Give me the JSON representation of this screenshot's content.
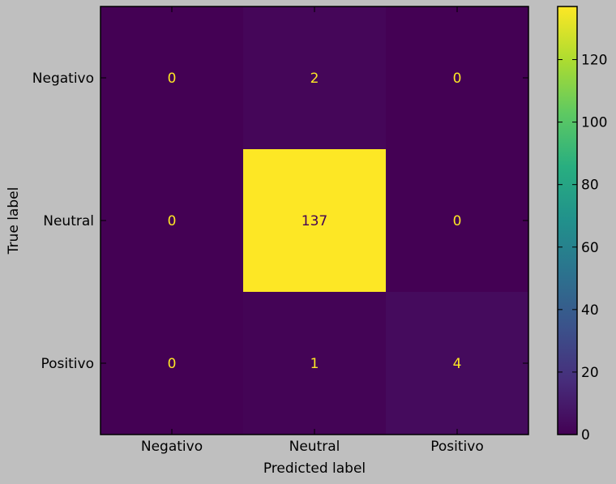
{
  "chart_data": {
    "type": "heatmap",
    "title": "",
    "xlabel": "Predicted label",
    "ylabel": "True label",
    "x_categories": [
      "Negativo",
      "Neutral",
      "Positivo"
    ],
    "y_categories": [
      "Negativo",
      "Neutral",
      "Positivo"
    ],
    "matrix": [
      [
        0,
        2,
        0
      ],
      [
        0,
        137,
        0
      ],
      [
        0,
        1,
        4
      ]
    ],
    "cell_labels": [
      [
        "0",
        "2",
        "0"
      ],
      [
        "0",
        "137",
        "0"
      ],
      [
        "0",
        "1",
        "4"
      ]
    ],
    "colormap": "viridis",
    "colorbar": {
      "range": [
        0,
        137
      ],
      "ticks": [
        0,
        20,
        40,
        60,
        80,
        100,
        120
      ],
      "tick_labels": [
        "0",
        "20",
        "40",
        "60",
        "80",
        "100",
        "120"
      ]
    },
    "grid": false
  },
  "colors": {
    "background": "#bfbfbf",
    "low_text": "#fde725",
    "high_text": "#440154"
  }
}
